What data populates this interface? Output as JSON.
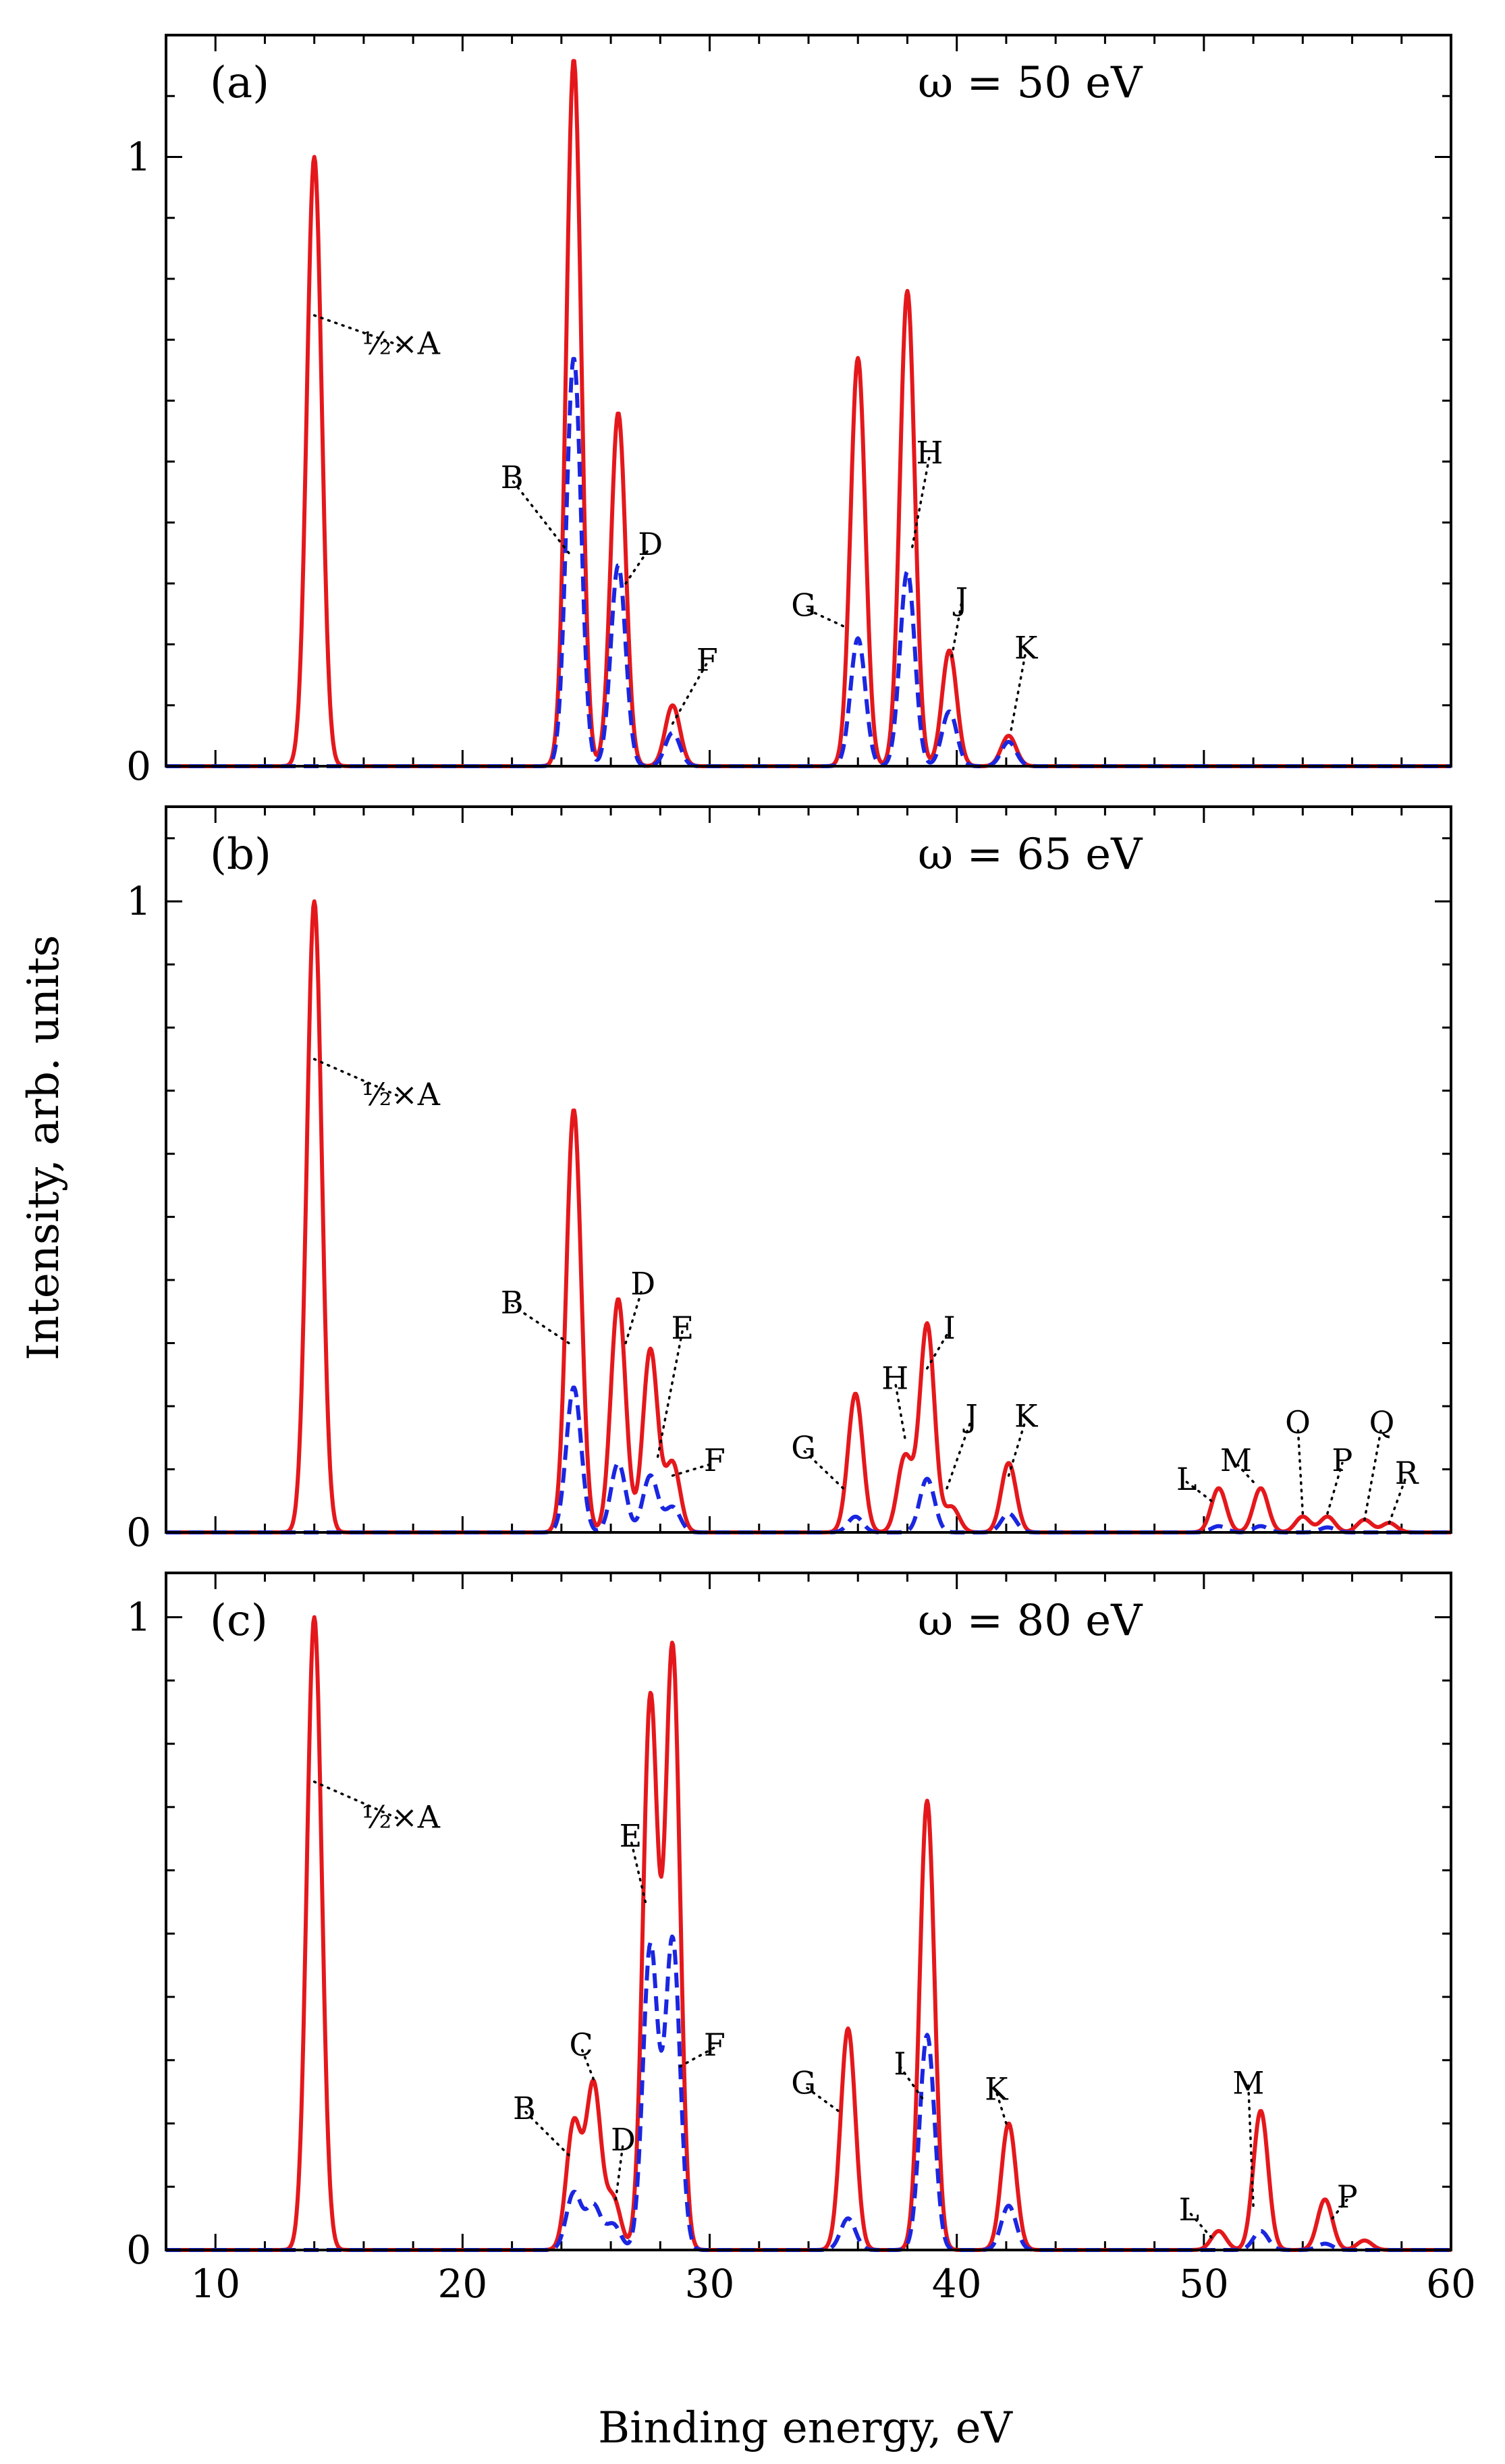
{
  "figure": {
    "xlabel": "Binding energy, eV",
    "ylabel": "Intensity, arb. units"
  },
  "chart_data": [
    {
      "type": "line",
      "panel": "(a)",
      "annotation": "ω = 50 eV",
      "xlim": [
        8,
        60
      ],
      "ylim": [
        0,
        1.2
      ],
      "xticks": [
        10,
        20,
        30,
        40,
        50,
        60
      ],
      "yticks": [
        0,
        1
      ],
      "ytick_labels": [
        "0",
        "1"
      ],
      "peak_width": 0.3,
      "series": [
        {
          "name": "total",
          "style": "solid",
          "color": "#e4181c",
          "peaks": [
            [
              14,
              1.0
            ],
            [
              24.5,
              1.16
            ],
            [
              26.3,
              0.58
            ],
            [
              28.5,
              0.1
            ],
            [
              36,
              0.67
            ],
            [
              38,
              0.78
            ],
            [
              39.7,
              0.19
            ],
            [
              42.1,
              0.05
            ]
          ]
        },
        {
          "name": "component",
          "style": "dashed",
          "color": "#1a26e0",
          "peaks": [
            [
              24.5,
              0.67
            ],
            [
              26.3,
              0.33
            ],
            [
              28.5,
              0.055
            ],
            [
              36,
              0.21
            ],
            [
              38,
              0.32
            ],
            [
              39.7,
              0.09
            ],
            [
              42.1,
              0.04
            ]
          ]
        }
      ],
      "labels": [
        {
          "text": "½×A",
          "x": 14.0,
          "y": 0.74,
          "tx": 17.5,
          "ty": 0.69
        },
        {
          "text": "B",
          "x": 24.3,
          "y": 0.35,
          "tx": 22.0,
          "ty": 0.47
        },
        {
          "text": "D",
          "x": 26.6,
          "y": 0.3,
          "tx": 27.6,
          "ty": 0.36
        },
        {
          "text": "F",
          "x": 28.5,
          "y": 0.07,
          "tx": 29.9,
          "ty": 0.17
        },
        {
          "text": "G",
          "x": 35.4,
          "y": 0.23,
          "tx": 33.8,
          "ty": 0.26
        },
        {
          "text": "H",
          "x": 38.2,
          "y": 0.36,
          "tx": 38.9,
          "ty": 0.51
        },
        {
          "text": "J",
          "x": 39.8,
          "y": 0.18,
          "tx": 40.2,
          "ty": 0.27
        },
        {
          "text": "K",
          "x": 42.2,
          "y": 0.06,
          "tx": 42.8,
          "ty": 0.19
        }
      ]
    },
    {
      "type": "line",
      "panel": "(b)",
      "annotation": "ω = 65 eV",
      "xlim": [
        8,
        60
      ],
      "ylim": [
        0,
        1.15
      ],
      "xticks": [
        10,
        20,
        30,
        40,
        50,
        60
      ],
      "yticks": [
        0,
        1
      ],
      "ytick_labels": [
        "0",
        "1"
      ],
      "peak_width": 0.3,
      "series": [
        {
          "name": "total",
          "style": "solid",
          "color": "#e4181c",
          "peaks": [
            [
              14,
              1.0
            ],
            [
              24.5,
              0.67
            ],
            [
              26.3,
              0.37
            ],
            [
              27.6,
              0.29
            ],
            [
              28.5,
              0.11
            ],
            [
              35.9,
              0.22
            ],
            [
              37.9,
              0.12
            ],
            [
              38.8,
              0.33
            ],
            [
              39.8,
              0.04
            ],
            [
              42.1,
              0.11
            ],
            [
              50.6,
              0.07
            ],
            [
              52.3,
              0.07
            ],
            [
              54.0,
              0.025
            ],
            [
              55.0,
              0.025
            ],
            [
              56.5,
              0.02
            ],
            [
              57.5,
              0.015
            ]
          ]
        },
        {
          "name": "component",
          "style": "dashed",
          "color": "#1a26e0",
          "peaks": [
            [
              24.5,
              0.23
            ],
            [
              26.3,
              0.11
            ],
            [
              27.6,
              0.09
            ],
            [
              28.5,
              0.04
            ],
            [
              35.9,
              0.025
            ],
            [
              38.8,
              0.085
            ],
            [
              42.1,
              0.03
            ],
            [
              50.6,
              0.01
            ],
            [
              52.3,
              0.01
            ],
            [
              55.0,
              0.008
            ]
          ]
        }
      ],
      "labels": [
        {
          "text": "½×A",
          "x": 14.0,
          "y": 0.75,
          "tx": 17.5,
          "ty": 0.69
        },
        {
          "text": "B",
          "x": 24.3,
          "y": 0.3,
          "tx": 22.0,
          "ty": 0.36
        },
        {
          "text": "D",
          "x": 26.6,
          "y": 0.3,
          "tx": 27.3,
          "ty": 0.39
        },
        {
          "text": "E",
          "x": 27.9,
          "y": 0.12,
          "tx": 28.9,
          "ty": 0.32
        },
        {
          "text": "F",
          "x": 28.5,
          "y": 0.09,
          "tx": 30.2,
          "ty": 0.11
        },
        {
          "text": "G",
          "x": 35.4,
          "y": 0.07,
          "tx": 33.8,
          "ty": 0.13
        },
        {
          "text": "H",
          "x": 37.9,
          "y": 0.15,
          "tx": 37.5,
          "ty": 0.24
        },
        {
          "text": "I",
          "x": 38.8,
          "y": 0.26,
          "tx": 39.7,
          "ty": 0.32
        },
        {
          "text": "J",
          "x": 39.6,
          "y": 0.07,
          "tx": 40.6,
          "ty": 0.18
        },
        {
          "text": "K",
          "x": 42.1,
          "y": 0.09,
          "tx": 42.8,
          "ty": 0.18
        },
        {
          "text": "L",
          "x": 50.3,
          "y": 0.05,
          "tx": 49.3,
          "ty": 0.08
        },
        {
          "text": "M",
          "x": 52.0,
          "y": 0.08,
          "tx": 51.3,
          "ty": 0.11
        },
        {
          "text": "O",
          "x": 54.0,
          "y": 0.03,
          "tx": 53.8,
          "ty": 0.17
        },
        {
          "text": "P",
          "x": 55.0,
          "y": 0.03,
          "tx": 55.6,
          "ty": 0.11
        },
        {
          "text": "Q",
          "x": 56.5,
          "y": 0.02,
          "tx": 57.2,
          "ty": 0.17
        },
        {
          "text": "R",
          "x": 57.5,
          "y": 0.015,
          "tx": 58.2,
          "ty": 0.09
        }
      ]
    },
    {
      "type": "line",
      "panel": "(c)",
      "annotation": "ω = 80 eV",
      "xlim": [
        8,
        60
      ],
      "ylim": [
        0,
        1.07
      ],
      "xticks": [
        10,
        20,
        30,
        40,
        50,
        60
      ],
      "xtick_labels": [
        "10",
        "20",
        "30",
        "40",
        "50",
        "60"
      ],
      "yticks": [
        0,
        1
      ],
      "ytick_labels": [
        "0",
        "1"
      ],
      "peak_width": 0.3,
      "series": [
        {
          "name": "total",
          "style": "solid",
          "color": "#e4181c",
          "peaks": [
            [
              14,
              1.0
            ],
            [
              24.5,
              0.2
            ],
            [
              25.3,
              0.26
            ],
            [
              26.1,
              0.08
            ],
            [
              27.6,
              0.87
            ],
            [
              28.5,
              0.95
            ],
            [
              35.6,
              0.35
            ],
            [
              38.8,
              0.71
            ],
            [
              42.1,
              0.2
            ],
            [
              50.6,
              0.03
            ],
            [
              52.3,
              0.22
            ],
            [
              54.9,
              0.08
            ],
            [
              56.5,
              0.015
            ]
          ]
        },
        {
          "name": "component",
          "style": "dashed",
          "color": "#1a26e0",
          "peaks": [
            [
              24.5,
              0.09
            ],
            [
              25.3,
              0.07
            ],
            [
              26.1,
              0.04
            ],
            [
              27.6,
              0.48
            ],
            [
              28.5,
              0.49
            ],
            [
              35.6,
              0.05
            ],
            [
              38.8,
              0.34
            ],
            [
              42.1,
              0.07
            ],
            [
              52.3,
              0.03
            ],
            [
              54.9,
              0.01
            ]
          ]
        }
      ],
      "labels": [
        {
          "text": "½×A",
          "x": 14.0,
          "y": 0.74,
          "tx": 17.5,
          "ty": 0.68
        },
        {
          "text": "B",
          "x": 24.3,
          "y": 0.15,
          "tx": 22.5,
          "ty": 0.22
        },
        {
          "text": "C",
          "x": 25.3,
          "y": 0.27,
          "tx": 24.8,
          "ty": 0.32
        },
        {
          "text": "D",
          "x": 26.2,
          "y": 0.08,
          "tx": 26.5,
          "ty": 0.17
        },
        {
          "text": "E",
          "x": 27.4,
          "y": 0.55,
          "tx": 26.8,
          "ty": 0.65
        },
        {
          "text": "F",
          "x": 28.8,
          "y": 0.29,
          "tx": 30.2,
          "ty": 0.32
        },
        {
          "text": "G",
          "x": 35.2,
          "y": 0.22,
          "tx": 33.8,
          "ty": 0.26
        },
        {
          "text": "I",
          "x": 38.6,
          "y": 0.24,
          "tx": 37.7,
          "ty": 0.29
        },
        {
          "text": "K",
          "x": 42.0,
          "y": 0.2,
          "tx": 41.6,
          "ty": 0.25
        },
        {
          "text": "L",
          "x": 50.3,
          "y": 0.02,
          "tx": 49.4,
          "ty": 0.06
        },
        {
          "text": "M",
          "x": 52.0,
          "y": 0.07,
          "tx": 51.8,
          "ty": 0.26
        },
        {
          "text": "P",
          "x": 55.2,
          "y": 0.05,
          "tx": 55.8,
          "ty": 0.08
        }
      ]
    }
  ]
}
